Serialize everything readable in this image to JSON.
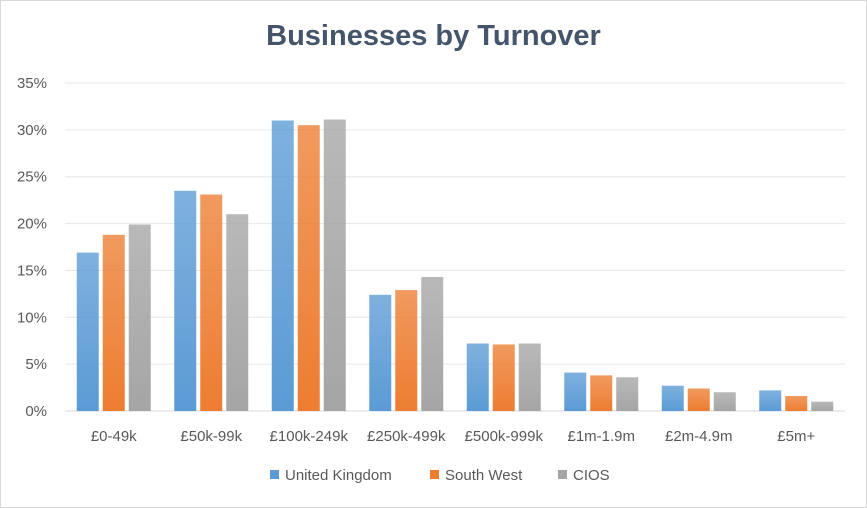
{
  "chart_data": {
    "type": "bar",
    "title": "Businesses by Turnover",
    "xlabel": "",
    "ylabel": "",
    "categories": [
      "£0-49k",
      "£50k-99k",
      "£100k-249k",
      "£250k-499k",
      "£500k-999k",
      "£1m-1.9m",
      "£2m-4.9m",
      "£5m+"
    ],
    "series": [
      {
        "name": "United Kingdom",
        "color": "#5b9bd5",
        "values": [
          16.9,
          23.5,
          31.0,
          12.4,
          7.2,
          4.1,
          2.7,
          2.2
        ]
      },
      {
        "name": "South West",
        "color": "#ed7d31",
        "values": [
          18.8,
          23.1,
          30.5,
          12.9,
          7.1,
          3.8,
          2.4,
          1.6
        ]
      },
      {
        "name": "CIOS",
        "color": "#a5a5a5",
        "values": [
          19.9,
          21.0,
          31.1,
          14.3,
          7.2,
          3.6,
          2.0,
          1.0
        ]
      }
    ],
    "ylim": [
      0,
      35
    ],
    "yticks": [
      0,
      5,
      10,
      15,
      20,
      25,
      30,
      35
    ],
    "ytick_labels": [
      "0%",
      "5%",
      "10%",
      "15%",
      "20%",
      "25%",
      "30%",
      "35%"
    ],
    "grid": true,
    "legend": "bottom"
  }
}
